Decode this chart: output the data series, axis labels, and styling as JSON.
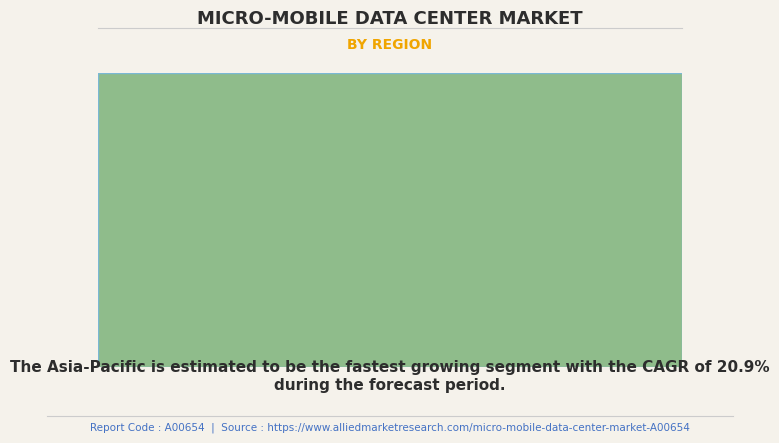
{
  "title": "MICRO-MOBILE DATA CENTER MARKET",
  "subtitle": "BY REGION",
  "title_color": "#2d2d2d",
  "subtitle_color": "#f0a500",
  "background_color": "#f5f2eb",
  "map_land_color": "#8fbc8b",
  "map_highlight_color": "#f0ede6",
  "map_border_color": "#7ab8d4",
  "map_shadow_color": "#999999",
  "body_text_line1": "The Asia-Pacific is estimated to be the fastest growing segment with the CAGR of 20.9%",
  "body_text_line2": "during the forecast period.",
  "body_text_color": "#2d2d2d",
  "footer_text": "Report Code : A00654  |  Source : https://www.alliedmarketresearch.com/micro-mobile-data-center-market-A00654",
  "footer_color": "#4472c4",
  "divider_color": "#cccccc",
  "title_fontsize": 13,
  "subtitle_fontsize": 10,
  "body_fontsize": 11,
  "footer_fontsize": 7.5
}
